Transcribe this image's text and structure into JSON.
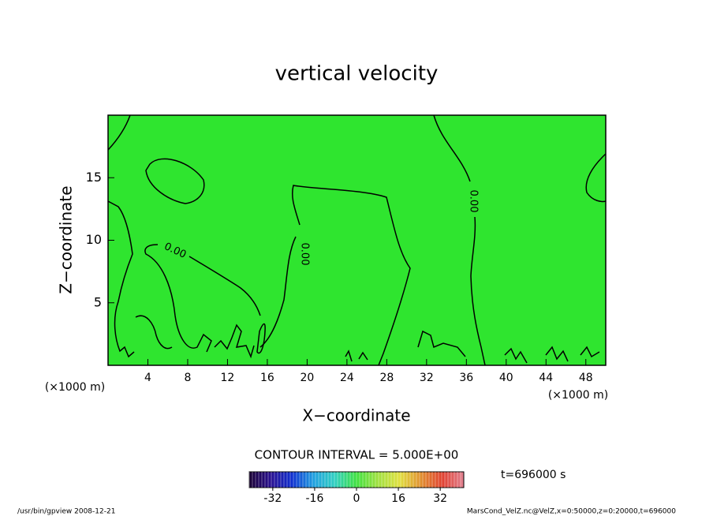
{
  "chart_data": {
    "type": "contour",
    "title": "vertical velocity",
    "x_label": "X−coordinate",
    "y_label": "Z−coordinate",
    "x_unit": "(×1000 m)",
    "xlim": [
      0,
      50
    ],
    "xticks": [
      4,
      8,
      12,
      16,
      20,
      24,
      28,
      32,
      36,
      40,
      44,
      48
    ],
    "ylim": [
      0,
      20
    ],
    "yticks": [
      5,
      10,
      15
    ],
    "field_color": "#2fe52f",
    "contour_levels": [
      0
    ],
    "contour_label": "0.00",
    "contour_interval_text": "CONTOUR INTERVAL = 5.000E+00",
    "time_text": "t=696000 s",
    "colorbar_lim": [
      -41,
      41
    ],
    "colorbar_ticks": [
      -32,
      -16,
      0,
      16,
      32
    ],
    "colormap": [
      "#1a0033",
      "#2a1090",
      "#1030d0",
      "#20a0e0",
      "#30d0c0",
      "#40e040",
      "#a0e040",
      "#e0e040",
      "#e09030",
      "#e04030",
      "#e08090"
    ],
    "footer_left": "/usr/bin/gpview  2008-12-21",
    "footer_right": "MarsCond_VelZ.nc@VelZ,x=0:50000,z=0:20000,t=696000"
  }
}
